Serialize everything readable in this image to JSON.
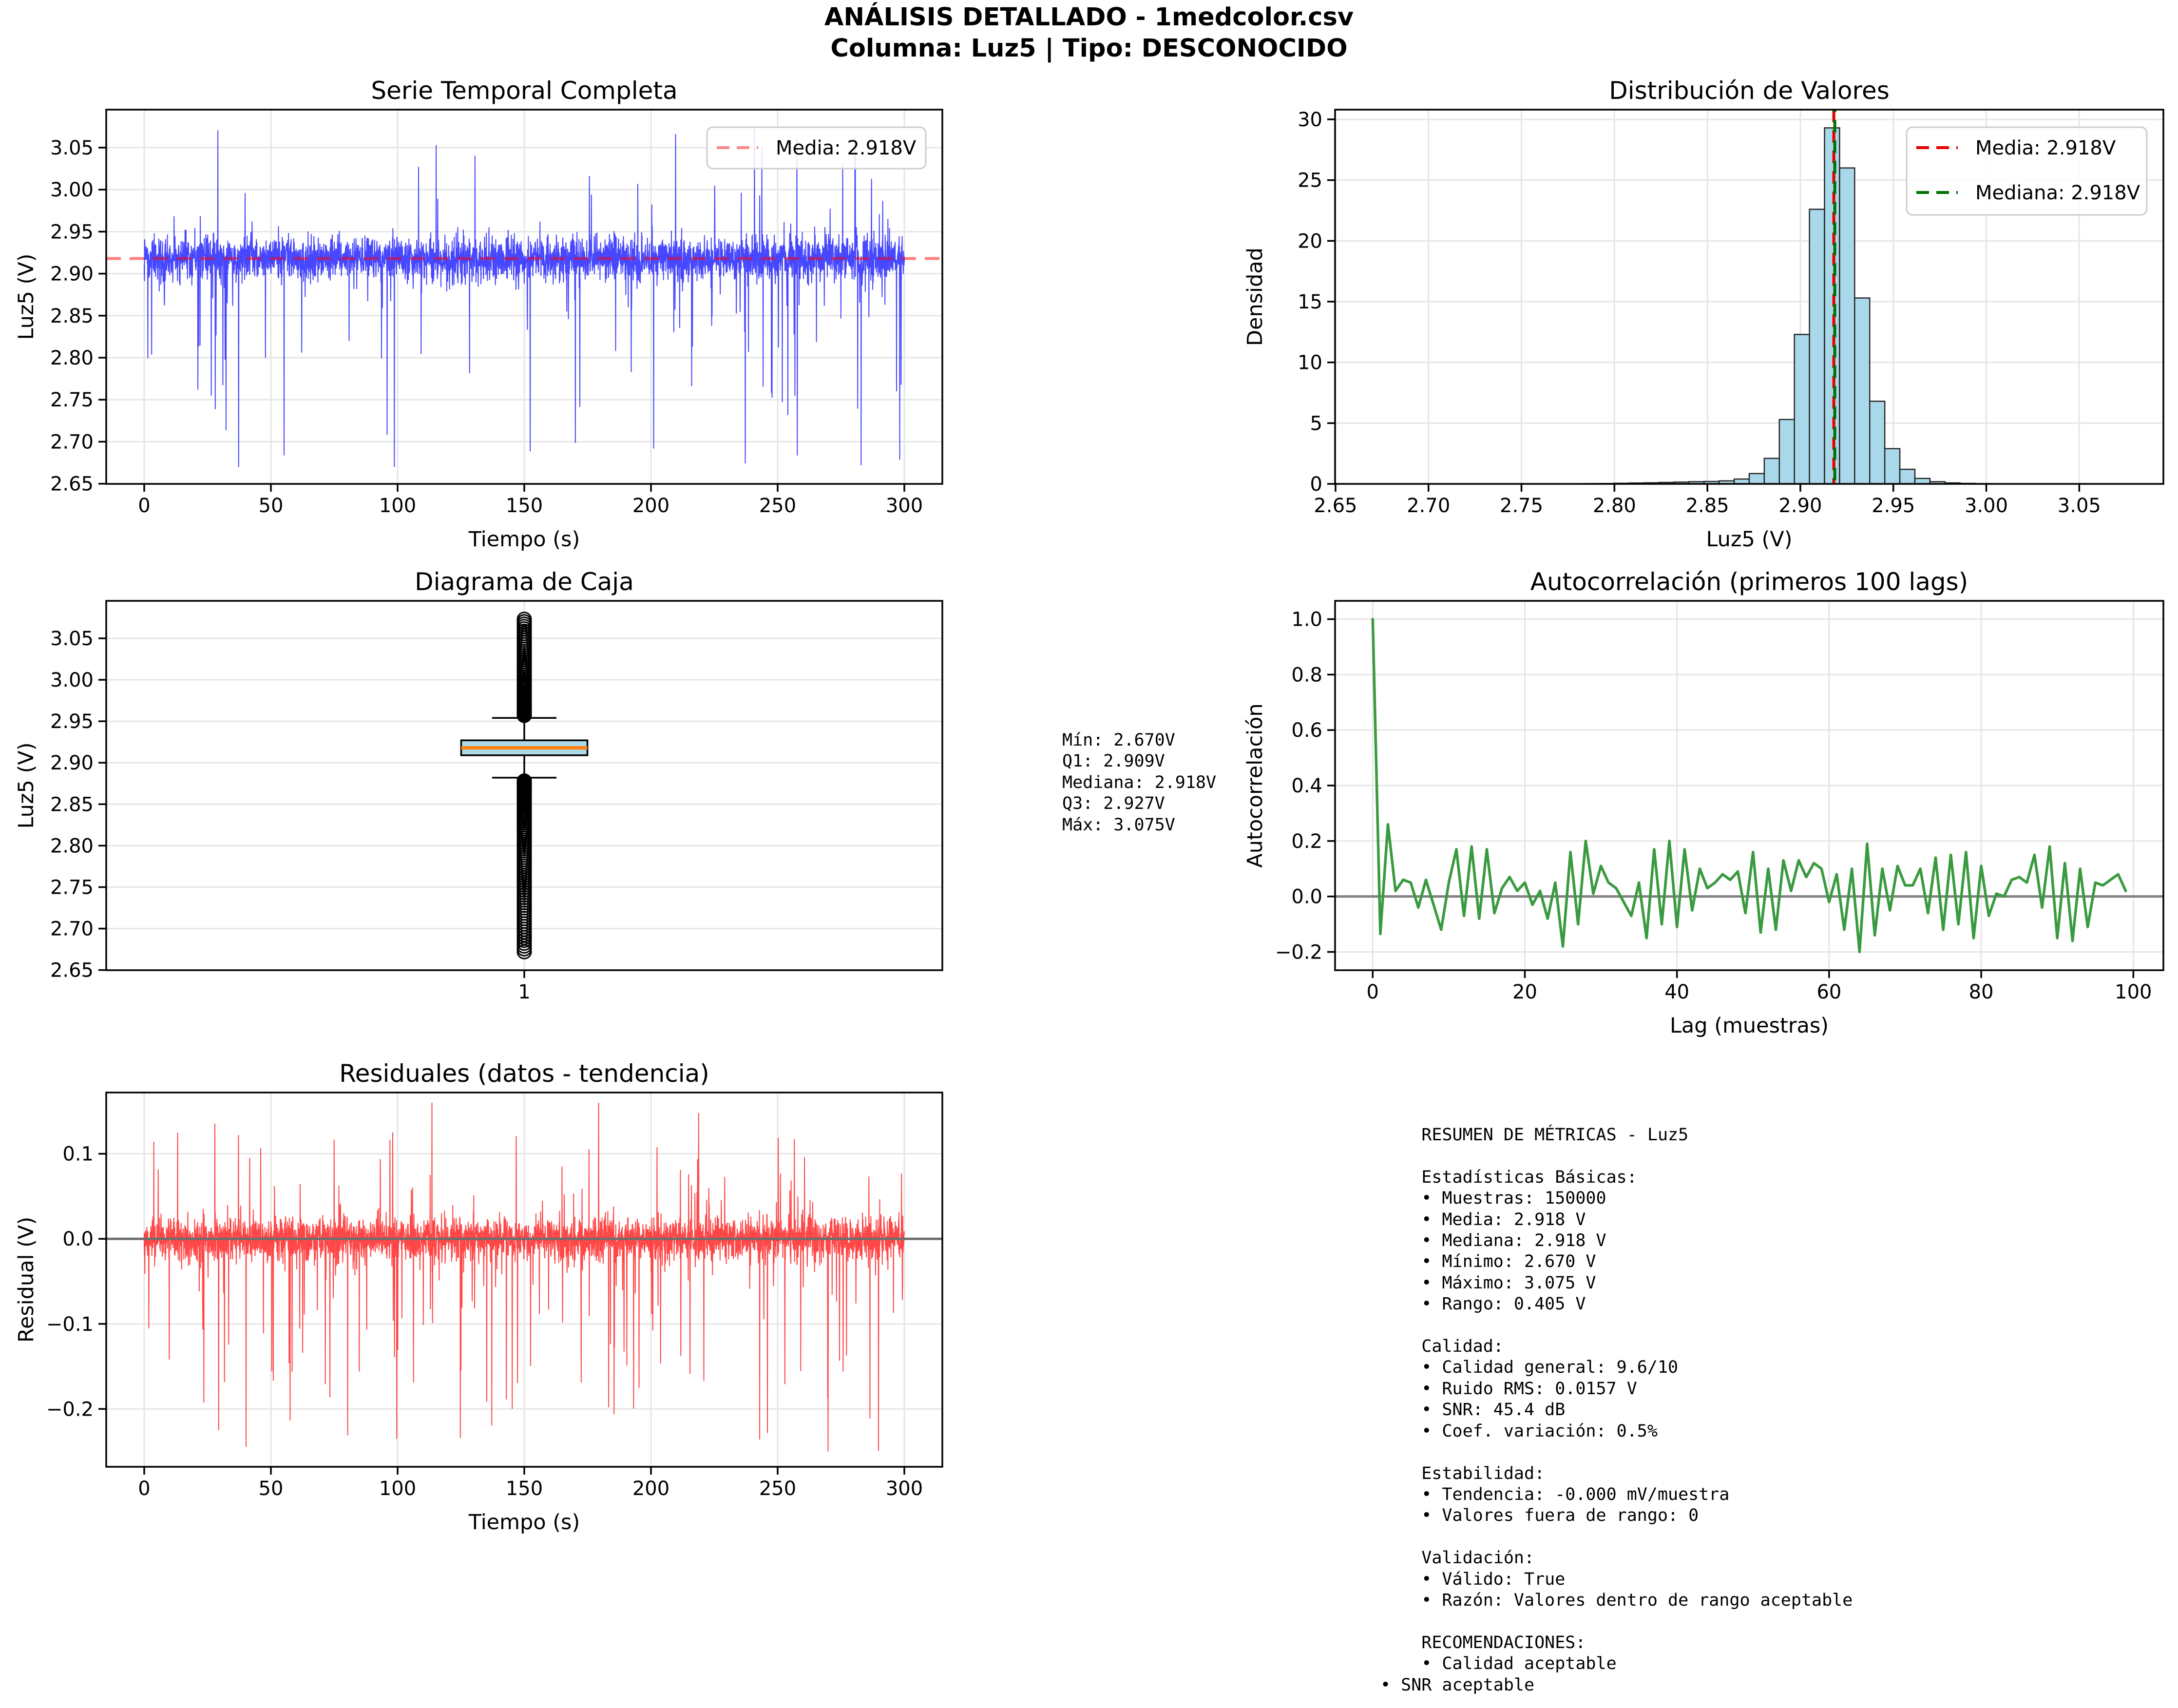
{
  "header": {
    "title_line1": "ANÁLISIS DETALLADO - 1medcolor.csv",
    "title_line2": "Columna: Luz5 | Tipo: DESCONOCIDO"
  },
  "colors": {
    "timeseries_line": "rgba(0,0,255,0.72)",
    "mean_line": "rgba(255,0,0,0.5)",
    "legend_mean_sample": "#f58a8a",
    "hist_fill": "#a8d8ea",
    "hist_edge": "#262626",
    "hist_mean_line": "#e60000",
    "hist_median_line": "#007000",
    "box_fill": "#add8e6",
    "box_median": "#ff7f0e",
    "autocorr_line": "#3a9a3f",
    "residual_line": "rgba(255,0,0,0.72)",
    "zero_line": "#808080",
    "grid": "#e6e6e6",
    "spine": "#000000"
  },
  "stats_annotation": {
    "lines": [
      "Mín: 2.670V",
      "Q1: 2.909V",
      "Mediana: 2.918V",
      "Q3: 2.927V",
      "Máx: 3.075V"
    ]
  },
  "metrics_panel": {
    "lines": [
      "    RESUMEN DE MÉTRICAS - Luz5",
      "",
      "    Estadísticas Básicas:",
      "    • Muestras: 150000",
      "    • Media: 2.918 V",
      "    • Mediana: 2.918 V",
      "    • Mínimo: 2.670 V",
      "    • Máximo: 3.075 V",
      "    • Rango: 0.405 V",
      "",
      "    Calidad:",
      "    • Calidad general: 9.6/10",
      "    • Ruido RMS: 0.0157 V",
      "    • SNR: 45.4 dB",
      "    • Coef. variación: 0.5%",
      "",
      "    Estabilidad:",
      "    • Tendencia: -0.000 mV/muestra",
      "    • Valores fuera de rango: 0",
      "",
      "    Validación:",
      "    • Válido: True",
      "    • Razón: Valores dentro de rango aceptable",
      "",
      "    RECOMENDACIONES:",
      "    • Calidad aceptable",
      "• SNR aceptable"
    ]
  },
  "chart_data": [
    {
      "id": "timeseries",
      "type": "line",
      "title": "Serie Temporal Completa",
      "xlabel": "Tiempo (s)",
      "ylabel": "Luz5 (V)",
      "xlim": [
        -15,
        315
      ],
      "ylim": [
        2.6498,
        3.0952
      ],
      "xticks": {
        "values": [
          0,
          50,
          100,
          150,
          200,
          250,
          300
        ],
        "labels": [
          "0",
          "50",
          "100",
          "150",
          "200",
          "250",
          "300"
        ]
      },
      "yticks": {
        "values": [
          2.65,
          2.7,
          2.75,
          2.8,
          2.85,
          2.9,
          2.95,
          3.0,
          3.05
        ],
        "labels": [
          "2.65",
          "2.70",
          "2.75",
          "2.80",
          "2.85",
          "2.90",
          "2.95",
          "3.00",
          "3.05"
        ]
      },
      "grid": true,
      "summary": {
        "n_samples": 150000,
        "duration_s": 300,
        "mean": 2.918,
        "min": 2.67,
        "max": 3.075,
        "noise_rms": 0.0157
      },
      "mean_line": {
        "value": 2.918
      },
      "legend": {
        "position": "upper right",
        "entries": [
          {
            "label": "Media: 2.918V",
            "style": "dashed",
            "color_key": "legend_mean_sample"
          }
        ]
      },
      "gen": {
        "seed": 1234,
        "n": 3800,
        "base": 2.918,
        "sigma": 0.0123,
        "t0": 0,
        "t1": 300,
        "down_prob": 0.032,
        "down_base": 0.018,
        "down_span": 0.23,
        "down_pow": 2.2,
        "up_prob": 0.02,
        "up_base": 0.016,
        "up_span": 0.142,
        "up_pow": 2.2,
        "clip": [
          2.67,
          3.075
        ]
      }
    },
    {
      "id": "histogram",
      "type": "bar",
      "title": "Distribución de Valores",
      "xlabel": "Luz5 (V)",
      "ylabel": "Densidad",
      "xlim": [
        2.64975,
        3.09525
      ],
      "ylim": [
        0,
        30.8
      ],
      "xticks": {
        "values": [
          2.65,
          2.7,
          2.75,
          2.8,
          2.85,
          2.9,
          2.95,
          3.0,
          3.05
        ],
        "labels": [
          "2.65",
          "2.70",
          "2.75",
          "2.80",
          "2.85",
          "2.90",
          "2.95",
          "3.00",
          "3.05"
        ]
      },
      "yticks": {
        "values": [
          0,
          5,
          10,
          15,
          20,
          25,
          30
        ],
        "labels": [
          "0",
          "5",
          "10",
          "15",
          "20",
          "25",
          "30"
        ]
      },
      "grid": true,
      "bins": {
        "start": 2.67,
        "width": 0.0081,
        "densities": [
          0.01,
          0.01,
          0.01,
          0.01,
          0.01,
          0.01,
          0.01,
          0.01,
          0.01,
          0.01,
          0.01,
          0.01,
          0.01,
          0.01,
          0.02,
          0.03,
          0.05,
          0.07,
          0.09,
          0.12,
          0.15,
          0.18,
          0.2,
          0.25,
          0.4,
          0.85,
          2.1,
          5.3,
          12.3,
          22.6,
          29.3,
          26.0,
          15.3,
          6.8,
          2.9,
          1.2,
          0.45,
          0.18,
          0.08,
          0.04,
          0.02,
          0.01,
          0.01,
          0.01,
          0.01,
          0.01,
          0.01,
          0.01,
          0.01,
          0.01
        ]
      },
      "vlines": [
        {
          "value": 2.918,
          "label": "Media: 2.918V",
          "color_key": "hist_mean_line"
        },
        {
          "value": 2.918,
          "label": "Mediana: 2.918V",
          "color_key": "hist_median_line"
        }
      ],
      "legend": {
        "position": "upper right",
        "entries": [
          {
            "label": "Media: 2.918V",
            "style": "dashed",
            "color_key": "hist_mean_line"
          },
          {
            "label": "Mediana: 2.918V",
            "style": "dashed",
            "color_key": "hist_median_line"
          }
        ]
      }
    },
    {
      "id": "boxplot",
      "type": "box",
      "title": "Diagrama de Caja",
      "xlabel": "",
      "ylabel": "Luz5 (V)",
      "xlim": [
        0,
        2
      ],
      "ylim": [
        2.6498,
        3.0952
      ],
      "xticks": {
        "values": [
          1
        ],
        "labels": [
          "1"
        ]
      },
      "yticks": {
        "values": [
          2.65,
          2.7,
          2.75,
          2.8,
          2.85,
          2.9,
          2.95,
          3.0,
          3.05
        ],
        "labels": [
          "2.65",
          "2.70",
          "2.75",
          "2.80",
          "2.85",
          "2.90",
          "2.95",
          "3.00",
          "3.05"
        ]
      },
      "grid": true,
      "stats": {
        "min": 2.67,
        "q1": 2.909,
        "median": 2.918,
        "q3": 2.927,
        "max": 3.075,
        "whisker_low": 2.882,
        "whisker_high": 2.954
      },
      "fliers": {
        "upper_count": 60,
        "upper_from": 2.957,
        "upper_to": 3.073,
        "lower_count": 90,
        "lower_from": 2.878,
        "lower_to": 2.672
      },
      "box_halfwidth": 0.151,
      "cap_halfwidth": 0.077
    },
    {
      "id": "autocorr",
      "type": "line",
      "title": "Autocorrelación (primeros 100 lags)",
      "xlabel": "Lag (muestras)",
      "ylabel": "Autocorrelación",
      "xlim": [
        -4.95,
        103.95
      ],
      "ylim": [
        -0.266,
        1.066
      ],
      "xticks": {
        "values": [
          0,
          20,
          40,
          60,
          80,
          100
        ],
        "labels": [
          "0",
          "20",
          "40",
          "60",
          "80",
          "100"
        ]
      },
      "yticks": {
        "values": [
          -0.2,
          0.0,
          0.2,
          0.4,
          0.6,
          0.8,
          1.0
        ],
        "labels": [
          "−0.2",
          "0.0",
          "0.2",
          "0.4",
          "0.6",
          "0.8",
          "1.0"
        ]
      },
      "grid": true,
      "zero_line": true,
      "values": [
        1.0,
        -0.135,
        0.26,
        0.02,
        0.06,
        0.05,
        -0.04,
        0.06,
        -0.03,
        -0.12,
        0.05,
        0.17,
        -0.07,
        0.18,
        -0.08,
        0.17,
        -0.06,
        0.03,
        0.07,
        0.02,
        0.05,
        -0.03,
        0.02,
        -0.08,
        0.05,
        -0.18,
        0.16,
        -0.1,
        0.2,
        0.01,
        0.11,
        0.05,
        0.03,
        -0.02,
        -0.07,
        0.05,
        -0.15,
        0.17,
        -0.1,
        0.2,
        -0.11,
        0.17,
        -0.05,
        0.1,
        0.03,
        0.05,
        0.08,
        0.06,
        0.09,
        -0.06,
        0.16,
        -0.13,
        0.1,
        -0.12,
        0.13,
        0.02,
        0.13,
        0.07,
        0.12,
        0.1,
        -0.02,
        0.08,
        -0.12,
        0.1,
        -0.2,
        0.19,
        -0.14,
        0.1,
        -0.05,
        0.11,
        0.04,
        0.04,
        0.1,
        -0.06,
        0.14,
        -0.12,
        0.15,
        -0.1,
        0.16,
        -0.15,
        0.11,
        -0.07,
        0.01,
        0.0,
        0.06,
        0.07,
        0.05,
        0.15,
        -0.04,
        0.18,
        -0.15,
        0.12,
        -0.16,
        0.1,
        -0.11,
        0.05,
        0.04,
        0.06,
        0.08,
        0.02
      ]
    },
    {
      "id": "residuals",
      "type": "line",
      "title": "Residuales (datos - tendencia)",
      "xlabel": "Tiempo (s)",
      "ylabel": "Residual (V)",
      "xlim": [
        -15,
        315
      ],
      "ylim": [
        -0.268,
        0.172
      ],
      "xticks": {
        "values": [
          0,
          50,
          100,
          150,
          200,
          250,
          300
        ],
        "labels": [
          "0",
          "50",
          "100",
          "150",
          "200",
          "250",
          "300"
        ]
      },
      "yticks": {
        "values": [
          0.1,
          0.0,
          -0.1,
          -0.2
        ],
        "labels": [
          "0.1",
          "0.0",
          "−0.1",
          "−0.2"
        ]
      },
      "grid": true,
      "zero_line": true,
      "summary": {
        "trend_mv_per_sample": -0.0,
        "min": -0.25,
        "max": 0.16
      },
      "gen": {
        "seed": 99,
        "n": 3800,
        "base": 0,
        "sigma": 0.0123,
        "t0": 0,
        "t1": 300,
        "down_prob": 0.034,
        "down_base": 0.018,
        "down_span": 0.235,
        "down_pow": 2.2,
        "up_prob": 0.022,
        "up_base": 0.015,
        "up_span": 0.15,
        "up_pow": 2.2,
        "clip": [
          -0.25,
          0.16
        ]
      }
    }
  ]
}
